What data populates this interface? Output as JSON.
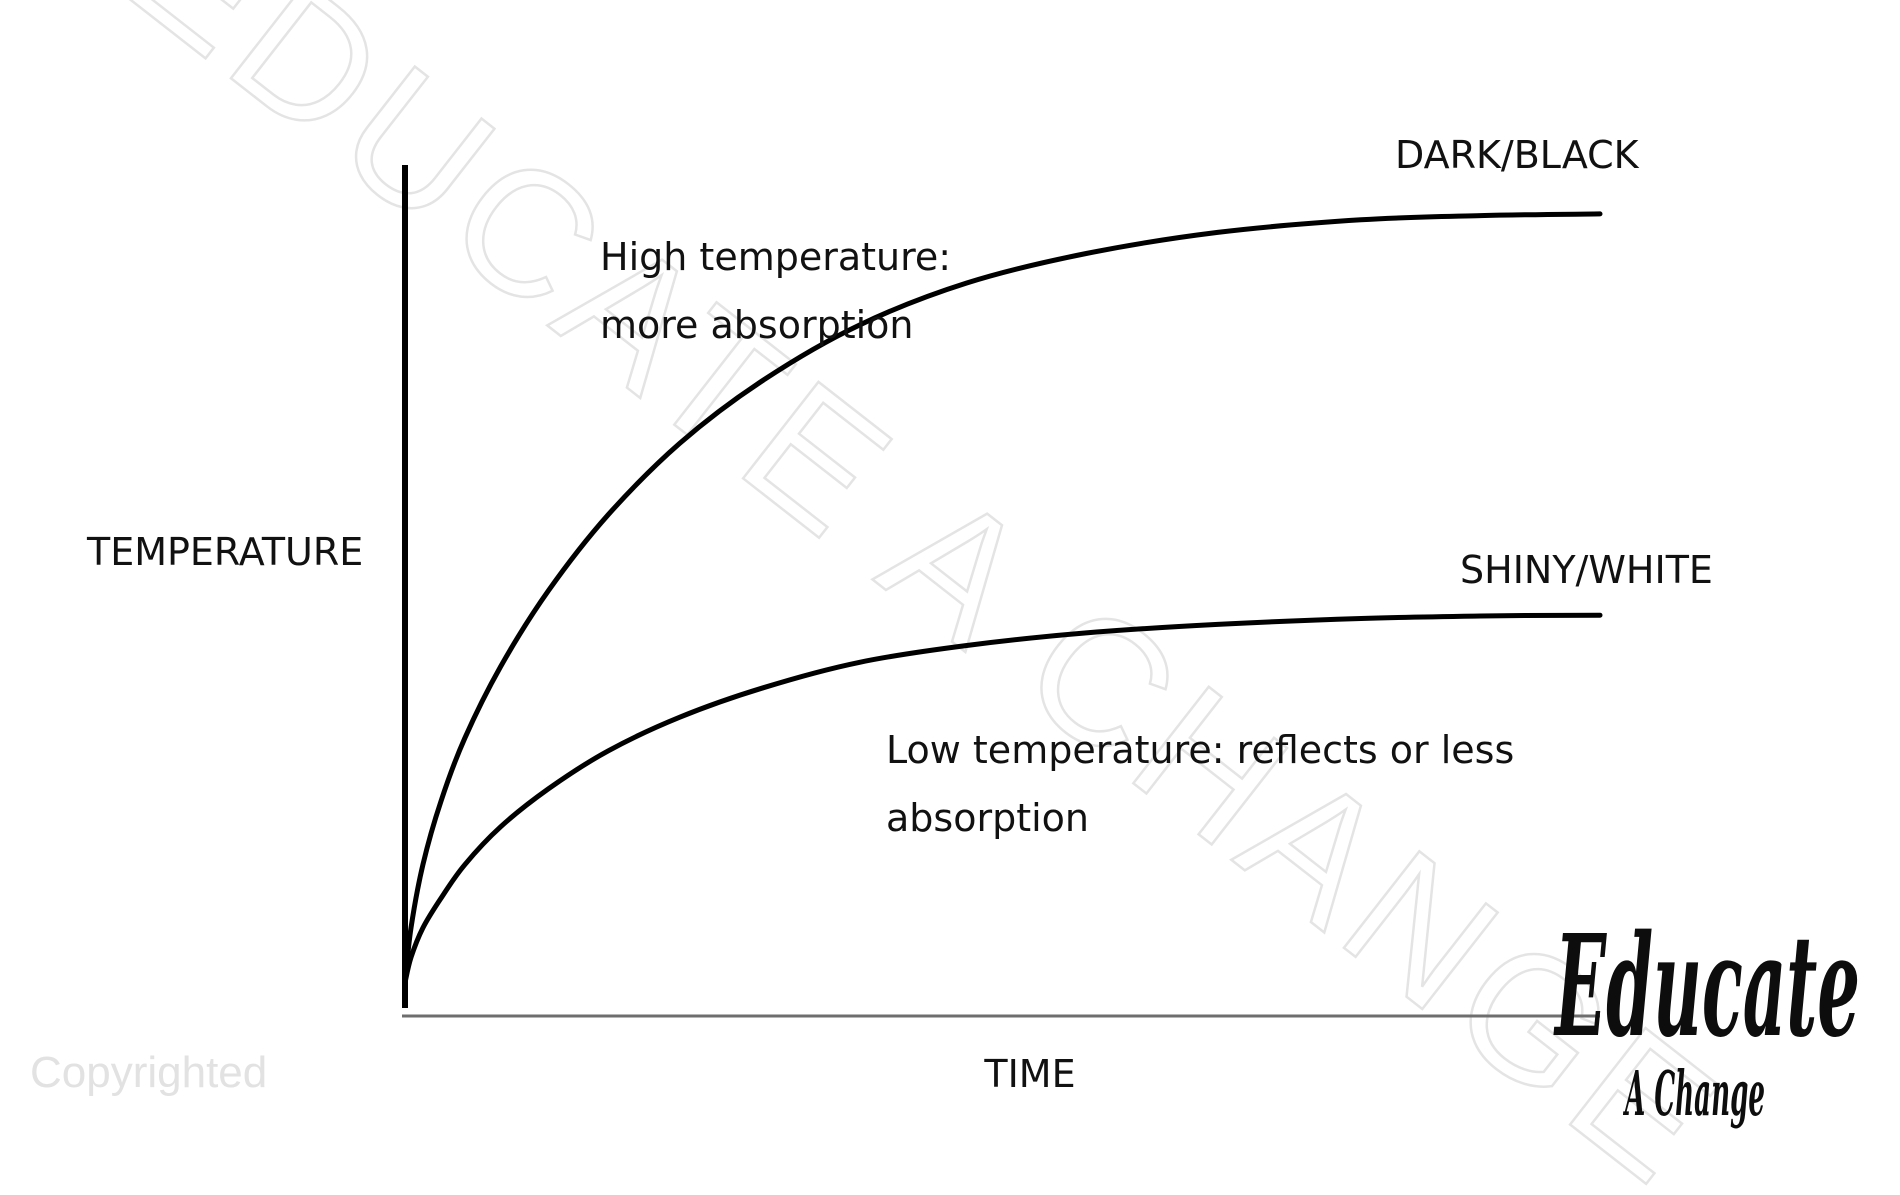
{
  "chart_data": {
    "type": "line",
    "title": "",
    "xlabel": "TIME",
    "ylabel": "TEMPERATURE",
    "grid": false,
    "ticks": false,
    "xlim": [
      0,
      10
    ],
    "ylim": [
      0,
      10
    ],
    "series": [
      {
        "name": "DARK/BLACK",
        "color": "#000000",
        "x": [
          0,
          0.05,
          0.15,
          0.3,
          0.5,
          0.8,
          1.2,
          1.7,
          2.3,
          3.0,
          3.8,
          4.7,
          5.7,
          6.8,
          8.0,
          9.0,
          10.0
        ],
        "y": [
          0.3,
          0.95,
          1.7,
          2.45,
          3.2,
          4.05,
          4.95,
          5.85,
          6.7,
          7.45,
          8.1,
          8.6,
          8.95,
          9.2,
          9.35,
          9.4,
          9.42
        ]
      },
      {
        "name": "SHINY/WHITE",
        "color": "#000000",
        "x": [
          0,
          0.05,
          0.15,
          0.3,
          0.5,
          0.8,
          1.2,
          1.7,
          2.3,
          3.0,
          3.8,
          4.7,
          5.7,
          6.8,
          8.0,
          9.0,
          10.0
        ],
        "y": [
          0.3,
          0.6,
          0.95,
          1.3,
          1.7,
          2.15,
          2.6,
          3.05,
          3.45,
          3.8,
          4.1,
          4.3,
          4.45,
          4.55,
          4.62,
          4.65,
          4.66
        ]
      }
    ],
    "annotations": [
      {
        "lines": [
          "High temperature:",
          "more absorption"
        ]
      },
      {
        "lines": [
          "Low temperature: reflects or less",
          "absorption"
        ]
      }
    ]
  },
  "watermark": "EDUCATE A CHANGE",
  "copyright": "Copyrighted",
  "logo": {
    "line1": "Educate",
    "line2": "A Change"
  }
}
